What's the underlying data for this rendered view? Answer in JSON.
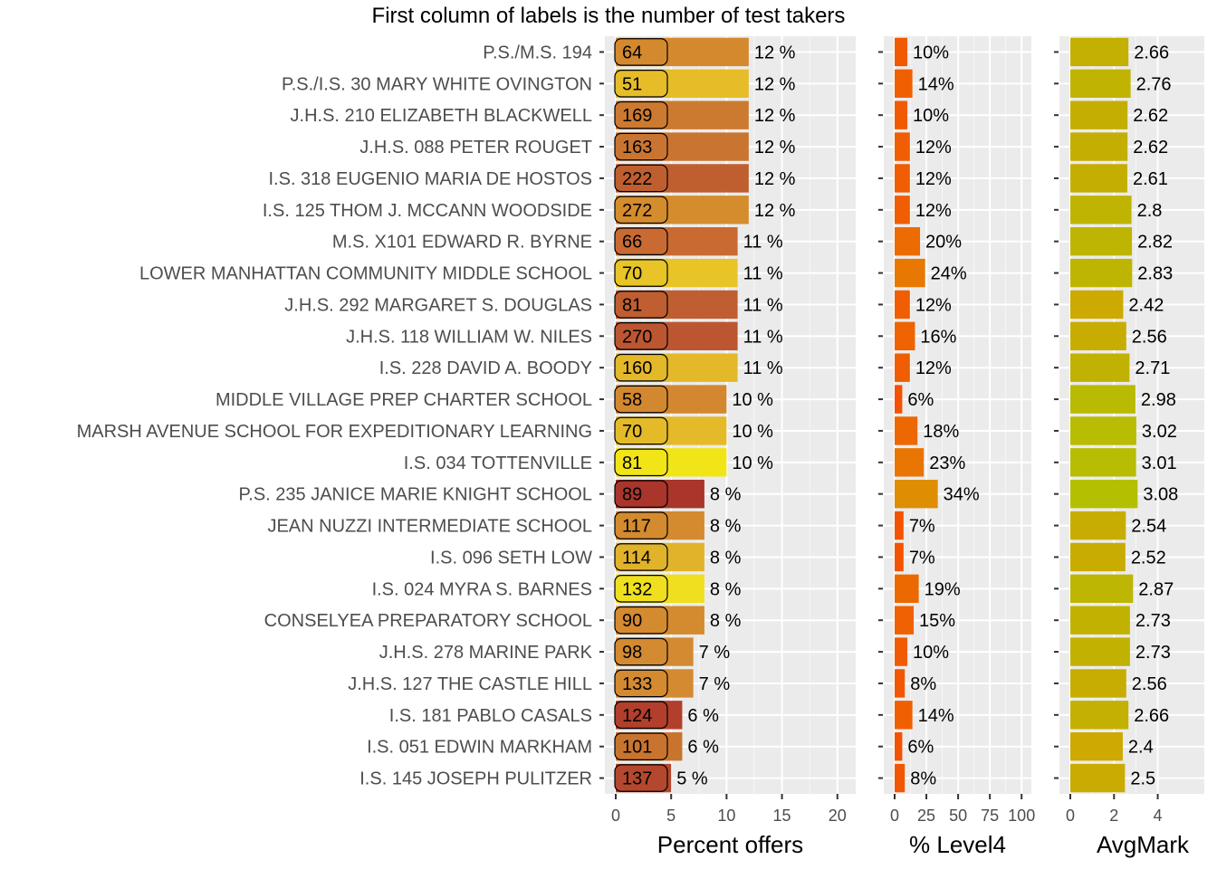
{
  "chart_data": {
    "type": "bar",
    "title": "First column of labels is the number of test takers",
    "categories": [
      "P.S./M.S. 194",
      "P.S./I.S. 30 MARY WHITE OVINGTON",
      "J.H.S. 210 ELIZABETH BLACKWELL",
      "J.H.S. 088 PETER ROUGET",
      "I.S. 318 EUGENIO MARIA DE HOSTOS",
      "I.S. 125 THOM J. MCCANN WOODSIDE",
      "M.S. X101 EDWARD R. BYRNE",
      "LOWER MANHATTAN COMMUNITY MIDDLE SCHOOL",
      "J.H.S. 292 MARGARET S. DOUGLAS",
      "J.H.S. 118 WILLIAM W. NILES",
      "I.S. 228 DAVID A. BOODY",
      "MIDDLE VILLAGE PREP CHARTER SCHOOL",
      "MARSH AVENUE SCHOOL FOR EXPEDITIONARY LEARNING",
      "I.S. 034 TOTTENVILLE",
      "P.S. 235 JANICE MARIE KNIGHT SCHOOL",
      "JEAN NUZZI INTERMEDIATE SCHOOL",
      "I.S. 096 SETH LOW",
      "I.S. 024 MYRA S. BARNES",
      "CONSELYEA PREPARATORY SCHOOL",
      "J.H.S. 278 MARINE PARK",
      "J.H.S. 127 THE CASTLE HILL",
      "I.S. 181 PABLO CASALS",
      "I.S. 051 EDWIN MARKHAM",
      "I.S. 145 JOSEPH PULITZER"
    ],
    "test_takers": [
      64,
      51,
      169,
      163,
      222,
      272,
      66,
      70,
      81,
      270,
      160,
      58,
      70,
      81,
      89,
      117,
      114,
      132,
      90,
      98,
      133,
      124,
      101,
      137
    ],
    "panels": [
      {
        "key": "offers",
        "xlabel": "Percent offers",
        "xlim": [
          0,
          21
        ],
        "ticks": [
          0,
          5,
          10,
          15,
          20
        ],
        "values": [
          12,
          12,
          12,
          12,
          12,
          12,
          11,
          11,
          11,
          11,
          11,
          10,
          10,
          10,
          8,
          8,
          8,
          8,
          8,
          7,
          7,
          6,
          6,
          5
        ],
        "value_labels": [
          "12 %",
          "12 %",
          "12 %",
          "12 %",
          "12 %",
          "12 %",
          "11 %",
          "11 %",
          "11 %",
          "11 %",
          "11 %",
          "10 %",
          "10 %",
          "10 %",
          "8 %",
          "8 %",
          "8 %",
          "8 %",
          "8 %",
          "7 %",
          "7 %",
          "6 %",
          "6 %",
          "5 %"
        ],
        "colors": [
          "#d4892e",
          "#e6bd28",
          "#cc7a30",
          "#c97531",
          "#bf5f30",
          "#d48c2d",
          "#c96a32",
          "#e8c426",
          "#bf5e30",
          "#bc5630",
          "#e3b829",
          "#d3882f",
          "#e4ba28",
          "#f2e517",
          "#a9352b",
          "#d48a2e",
          "#e1b32a",
          "#f0df1e",
          "#d48a2e",
          "#d38a30",
          "#d48a30",
          "#b13f2c",
          "#c9742e",
          "#b4472d"
        ]
      },
      {
        "key": "level4",
        "xlabel": "% Level4",
        "xlim": [
          0,
          102
        ],
        "ticks": [
          0,
          25,
          50,
          75,
          100
        ],
        "values": [
          10,
          14,
          10,
          12,
          12,
          12,
          20,
          24,
          12,
          16,
          12,
          6,
          18,
          23,
          34,
          7,
          7,
          19,
          15,
          10,
          8,
          14,
          6,
          8
        ],
        "value_labels": [
          "10%",
          "14%",
          "10%",
          "12%",
          "12%",
          "12%",
          "20%",
          "24%",
          "12%",
          "16%",
          "12%",
          "6%",
          "18%",
          "23%",
          "34%",
          "7%",
          "7%",
          "19%",
          "15%",
          "10%",
          "8%",
          "14%",
          "6%",
          "8%"
        ],
        "colors": [
          "#f05a02",
          "#f06002",
          "#f05a02",
          "#f05d02",
          "#f05d02",
          "#f05d02",
          "#ec6b02",
          "#e87802",
          "#f05d02",
          "#ef6302",
          "#f05d02",
          "#f25202",
          "#ed6702",
          "#e97502",
          "#de8e02",
          "#f25402",
          "#f25402",
          "#ec6902",
          "#ef6102",
          "#f05a02",
          "#f15702",
          "#f06002",
          "#f25202",
          "#f15702"
        ]
      },
      {
        "key": "avgmark",
        "xlabel": "AvgMark",
        "xlim": [
          0,
          5.8
        ],
        "ticks": [
          0,
          2,
          4
        ],
        "values": [
          2.66,
          2.76,
          2.62,
          2.62,
          2.61,
          2.8,
          2.82,
          2.83,
          2.42,
          2.56,
          2.71,
          2.98,
          3.02,
          3.01,
          3.08,
          2.54,
          2.52,
          2.87,
          2.73,
          2.73,
          2.56,
          2.66,
          2.4,
          2.5
        ],
        "value_labels": [
          "2.66",
          "2.76",
          "2.62",
          "2.62",
          "2.61",
          "2.8",
          "2.82",
          "2.83",
          "2.42",
          "2.56",
          "2.71",
          "2.98",
          "3.02",
          "3.01",
          "3.08",
          "2.54",
          "2.52",
          "2.87",
          "2.73",
          "2.73",
          "2.56",
          "2.66",
          "2.4",
          "2.5"
        ],
        "colors": [
          "#c3b002",
          "#c0b302",
          "#c5ae02",
          "#c5ae02",
          "#c5ae02",
          "#bfb402",
          "#beb502",
          "#beb502",
          "#ccaa02",
          "#c7ad02",
          "#c1b102",
          "#b9ba02",
          "#b8bc02",
          "#b8bc02",
          "#b5bf02",
          "#c7ad02",
          "#c8ac02",
          "#bdb602",
          "#c1b202",
          "#c1b202",
          "#c7ad02",
          "#c3b002",
          "#cda902",
          "#caab02"
        ]
      }
    ],
    "grid": true,
    "legend": "none"
  }
}
